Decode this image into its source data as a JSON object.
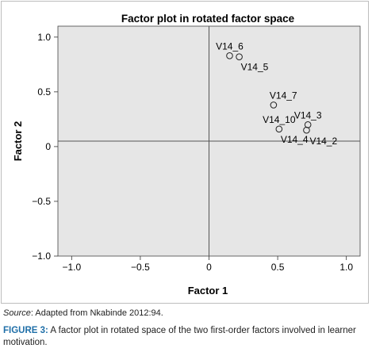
{
  "chart_data": {
    "type": "scatter",
    "title": "Factor plot in rotated factor space",
    "xlabel": "Factor 1",
    "ylabel": "Factor 2",
    "xlim": [
      -1.1,
      1.1
    ],
    "ylim": [
      -1.0,
      1.1
    ],
    "x_ticks": [
      -1.0,
      -0.5,
      0.0,
      0.5,
      1.0
    ],
    "x_tick_labels": [
      "−1.0",
      "−0.5",
      "0",
      "0.5",
      "1.0"
    ],
    "y_ticks": [
      -1.0,
      -0.5,
      0.0,
      0.5,
      1.0
    ],
    "y_tick_labels": [
      "−1.0",
      "−0.5",
      "0",
      "0.5",
      "1.0"
    ],
    "reference_lines": {
      "x": 0.0,
      "y": 0.05
    },
    "grid": false,
    "plot_background": "#e6e6e6",
    "marker": "open-circle",
    "points": [
      {
        "label": "V14_6",
        "x": 0.15,
        "y": 0.83,
        "label_pos": "above"
      },
      {
        "label": "V14_5",
        "x": 0.22,
        "y": 0.82,
        "label_pos": "below-right"
      },
      {
        "label": "V14_7",
        "x": 0.47,
        "y": 0.38,
        "label_pos": "above-right"
      },
      {
        "label": "V14_10",
        "x": 0.51,
        "y": 0.16,
        "label_pos": "above"
      },
      {
        "label": "V14_4",
        "x": 0.51,
        "y": 0.16,
        "label_pos": "below-right"
      },
      {
        "label": "V14_3",
        "x": 0.72,
        "y": 0.2,
        "label_pos": "above"
      },
      {
        "label": "V14_2",
        "x": 0.71,
        "y": 0.15,
        "label_pos": "right"
      }
    ]
  },
  "source": {
    "label": "Source",
    "text": ": Adapted from Nkabinde 2012:94."
  },
  "caption": {
    "label": "FIGURE 3:",
    "text": " A factor plot in rotated space of the two first-order factors involved in learner motivation."
  }
}
